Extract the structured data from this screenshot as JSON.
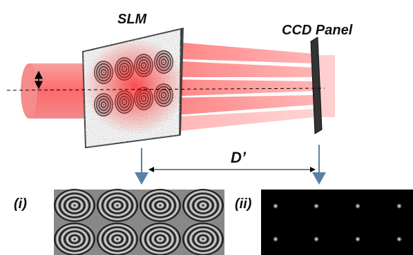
{
  "labels": {
    "slm": "SLM",
    "ccd": "CCD Panel",
    "distance": "D’",
    "panel_i": "(i)",
    "panel_ii": "(ii)"
  }
}
